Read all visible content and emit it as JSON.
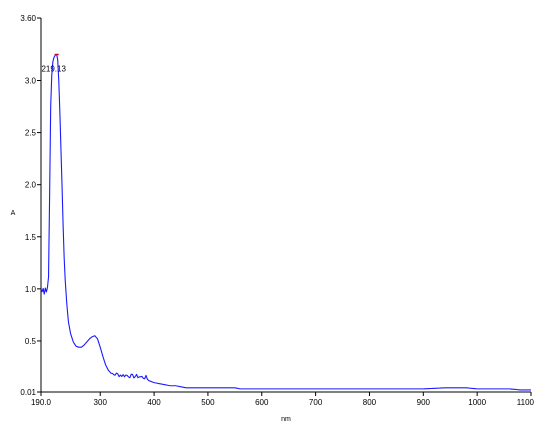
{
  "chart_data": {
    "type": "line",
    "xlabel": "nm",
    "ylabel": "A",
    "xlim": [
      190.0,
      1100
    ],
    "ylim": [
      0.01,
      3.6
    ],
    "x_ticks": [
      {
        "value": 190,
        "label": "190.0"
      },
      {
        "value": 300,
        "label": "300"
      },
      {
        "value": 400,
        "label": "400"
      },
      {
        "value": 500,
        "label": "500"
      },
      {
        "value": 600,
        "label": "600"
      },
      {
        "value": 700,
        "label": "700"
      },
      {
        "value": 800,
        "label": "800"
      },
      {
        "value": 900,
        "label": "900"
      },
      {
        "value": 1000,
        "label": "1000"
      },
      {
        "value": 1100,
        "label": "1100"
      }
    ],
    "y_ticks": [
      {
        "value": 0.01,
        "label": "0.01"
      },
      {
        "value": 0.5,
        "label": "0.5"
      },
      {
        "value": 1.0,
        "label": "1.0"
      },
      {
        "value": 1.5,
        "label": "1.5"
      },
      {
        "value": 2.0,
        "label": "2.0"
      },
      {
        "value": 2.5,
        "label": "2.5"
      },
      {
        "value": 3.0,
        "label": "3.0"
      },
      {
        "value": 3.6,
        "label": "3.60"
      }
    ],
    "peak": {
      "x": 219.13,
      "y": 3.25,
      "label": "219.13"
    },
    "grid": false,
    "colors": {
      "line": "#1a1aff",
      "peak_marker": "#cc0033",
      "axis": "#000000"
    },
    "series": [
      {
        "x": [
          190,
          192,
          194,
          196,
          198,
          200,
          202,
          204,
          206,
          208,
          210,
          212,
          214,
          216,
          218,
          219.13,
          221,
          223,
          225,
          227,
          229,
          231,
          233,
          235,
          238,
          241,
          245,
          250,
          255,
          260,
          265,
          270,
          275,
          280,
          285,
          290,
          295,
          300,
          305,
          310,
          315,
          320,
          325,
          330,
          340,
          350,
          360,
          370,
          380,
          385,
          390,
          400,
          410,
          420,
          430,
          440,
          450,
          460,
          480,
          500,
          520,
          550,
          560,
          600,
          650,
          700,
          750,
          800,
          850,
          900,
          940,
          960,
          980,
          1000,
          1020,
          1040,
          1060,
          1080,
          1100
        ],
        "y": [
          1.0,
          0.97,
          1.02,
          0.96,
          1.01,
          0.97,
          1.03,
          1.1,
          1.9,
          2.75,
          3.05,
          3.18,
          3.22,
          3.24,
          3.25,
          3.25,
          3.2,
          3.0,
          2.7,
          2.35,
          2.0,
          1.62,
          1.3,
          1.08,
          0.85,
          0.68,
          0.57,
          0.49,
          0.45,
          0.44,
          0.44,
          0.46,
          0.49,
          0.52,
          0.54,
          0.55,
          0.52,
          0.44,
          0.35,
          0.27,
          0.22,
          0.19,
          0.18,
          0.18,
          0.17,
          0.17,
          0.16,
          0.16,
          0.15,
          0.15,
          0.12,
          0.1,
          0.09,
          0.08,
          0.07,
          0.07,
          0.06,
          0.05,
          0.05,
          0.05,
          0.05,
          0.05,
          0.04,
          0.04,
          0.04,
          0.04,
          0.04,
          0.04,
          0.04,
          0.04,
          0.05,
          0.05,
          0.05,
          0.04,
          0.04,
          0.04,
          0.04,
          0.03,
          0.03
        ]
      }
    ]
  }
}
